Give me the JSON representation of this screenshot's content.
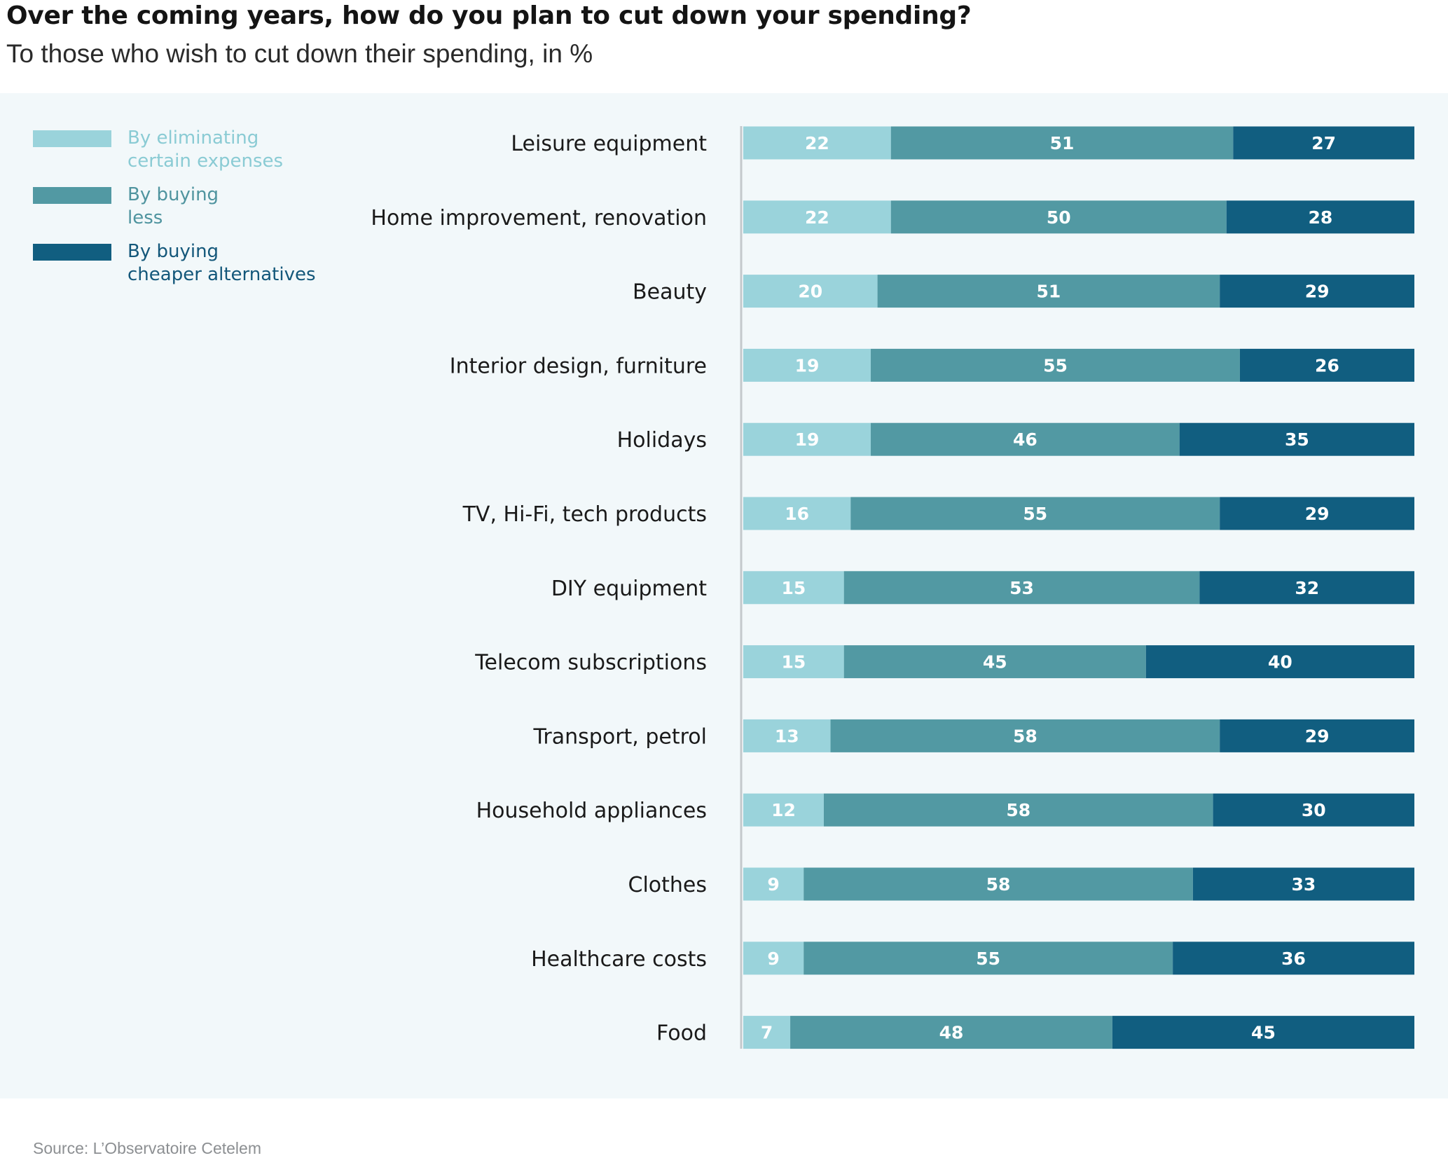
{
  "title": "Over the coming years, how do you plan to cut down your spending?",
  "subtitle": "To those who wish to cut down their spending, in %",
  "source": "Source: L’Observatoire Cetelem",
  "colors": {
    "eliminating": "#9ad3db",
    "buying_less": "#5299a3",
    "cheaper": "#115e80",
    "axis": "#c4c9cc",
    "panel": "#f2f8fa"
  },
  "legend": [
    {
      "label": "By eliminating\ncertain expenses",
      "color": "#9ad3db",
      "text_color": "#8acbd4"
    },
    {
      "label": "By buying\nless",
      "color": "#5299a3",
      "text_color": "#4f949f"
    },
    {
      "label": "By buying\ncheaper alternatives",
      "color": "#115e80",
      "text_color": "#13577a"
    }
  ],
  "chart_data": {
    "type": "bar",
    "orientation": "horizontal",
    "stacked": true,
    "categories": [
      "Leisure equipment",
      "Home improvement, renovation",
      "Beauty",
      "Interior design, furniture",
      "Holidays",
      "TV, Hi-Fi, tech products",
      "DIY equipment",
      "Telecom subscriptions",
      "Transport, petrol",
      "Household appliances",
      "Clothes",
      "Healthcare costs",
      "Food"
    ],
    "series": [
      {
        "name": "By eliminating certain expenses",
        "color": "#9ad3db",
        "values": [
          22,
          22,
          20,
          19,
          19,
          16,
          15,
          15,
          13,
          12,
          9,
          9,
          7
        ]
      },
      {
        "name": "By buying less",
        "color": "#5299a3",
        "values": [
          51,
          50,
          51,
          55,
          46,
          55,
          53,
          45,
          58,
          58,
          58,
          55,
          48
        ]
      },
      {
        "name": "By buying cheaper alternatives",
        "color": "#115e80",
        "values": [
          27,
          28,
          29,
          26,
          35,
          29,
          32,
          40,
          29,
          30,
          33,
          36,
          45
        ]
      }
    ],
    "xlim": [
      0,
      100
    ],
    "legend_position": "top-left",
    "grid": false
  }
}
